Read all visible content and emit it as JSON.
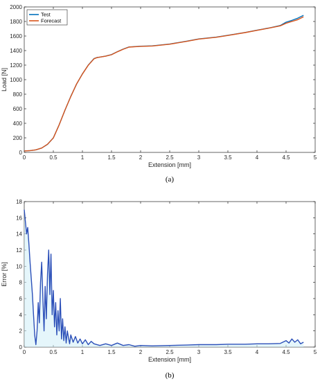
{
  "chart_data": [
    {
      "panel_label": "(a)",
      "type": "line",
      "xlabel": "Extension [mm]",
      "ylabel": "Load [N]",
      "xlim": [
        0,
        5
      ],
      "ylim": [
        0,
        2000
      ],
      "x_ticks": [
        "0",
        "0.5",
        "1",
        "1.5",
        "2",
        "2.5",
        "3",
        "3.5",
        "4",
        "4.5",
        "5"
      ],
      "y_ticks": [
        "0",
        "200",
        "400",
        "600",
        "800",
        "1000",
        "1200",
        "1400",
        "1600",
        "1800",
        "2000"
      ],
      "legend_position": "top-left",
      "series": [
        {
          "name": "Test",
          "color": "#0072bd",
          "x": [
            0,
            0.1,
            0.2,
            0.3,
            0.4,
            0.5,
            0.6,
            0.7,
            0.8,
            0.9,
            1.0,
            1.1,
            1.2,
            1.25,
            1.3,
            1.4,
            1.5,
            1.6,
            1.7,
            1.8,
            2.0,
            2.2,
            2.5,
            2.8,
            3.0,
            3.3,
            3.5,
            3.8,
            4.0,
            4.2,
            4.4,
            4.5,
            4.6,
            4.7,
            4.8
          ],
          "y": [
            20,
            25,
            35,
            60,
            110,
            200,
            380,
            580,
            770,
            940,
            1080,
            1200,
            1290,
            1305,
            1310,
            1325,
            1345,
            1385,
            1420,
            1450,
            1460,
            1465,
            1490,
            1530,
            1560,
            1585,
            1610,
            1650,
            1680,
            1710,
            1745,
            1790,
            1815,
            1845,
            1885
          ]
        },
        {
          "name": "Forecast",
          "color": "#d95319",
          "x": [
            0,
            0.1,
            0.2,
            0.3,
            0.4,
            0.5,
            0.6,
            0.7,
            0.8,
            0.9,
            1.0,
            1.1,
            1.2,
            1.25,
            1.3,
            1.4,
            1.5,
            1.6,
            1.7,
            1.8,
            2.0,
            2.2,
            2.5,
            2.8,
            3.0,
            3.3,
            3.5,
            3.8,
            4.0,
            4.2,
            4.4,
            4.5,
            4.6,
            4.7,
            4.8
          ],
          "y": [
            20,
            25,
            35,
            60,
            112,
            198,
            378,
            582,
            768,
            942,
            1078,
            1198,
            1288,
            1303,
            1310,
            1323,
            1343,
            1383,
            1418,
            1448,
            1458,
            1463,
            1488,
            1528,
            1558,
            1583,
            1608,
            1648,
            1678,
            1708,
            1740,
            1775,
            1800,
            1825,
            1865
          ]
        }
      ]
    },
    {
      "panel_label": "(b)",
      "type": "line",
      "xlabel": "Extension [mm]",
      "ylabel": "Error [%]",
      "xlim": [
        0,
        5
      ],
      "ylim": [
        0,
        18
      ],
      "x_ticks": [
        "0",
        "0.5",
        "1",
        "1.5",
        "2",
        "2.5",
        "3",
        "3.5",
        "4",
        "4.5",
        "5"
      ],
      "y_ticks": [
        "0",
        "2",
        "4",
        "6",
        "8",
        "10",
        "12",
        "14",
        "16",
        "18"
      ],
      "series": [
        {
          "name": "",
          "color": "#2b4fb8",
          "x": [
            0,
            0.02,
            0.04,
            0.06,
            0.08,
            0.1,
            0.12,
            0.14,
            0.16,
            0.18,
            0.2,
            0.22,
            0.24,
            0.26,
            0.28,
            0.3,
            0.32,
            0.34,
            0.36,
            0.38,
            0.4,
            0.42,
            0.44,
            0.46,
            0.48,
            0.5,
            0.52,
            0.54,
            0.56,
            0.58,
            0.6,
            0.62,
            0.64,
            0.66,
            0.68,
            0.7,
            0.72,
            0.74,
            0.76,
            0.78,
            0.8,
            0.84,
            0.88,
            0.92,
            0.96,
            1.0,
            1.05,
            1.1,
            1.15,
            1.2,
            1.3,
            1.4,
            1.5,
            1.6,
            1.7,
            1.8,
            1.9,
            2.0,
            2.2,
            2.5,
            2.8,
            3.0,
            3.3,
            3.5,
            3.8,
            4.0,
            4.2,
            4.4,
            4.5,
            4.55,
            4.6,
            4.65,
            4.7,
            4.75,
            4.8
          ],
          "y": [
            17.0,
            15.5,
            14.0,
            14.8,
            12.8,
            10.5,
            8.5,
            6.5,
            4.0,
            1.5,
            0.3,
            2.0,
            5.5,
            3.0,
            8.0,
            10.5,
            6.0,
            2.0,
            7.5,
            3.5,
            9.0,
            12.0,
            6.5,
            11.5,
            4.0,
            7.0,
            2.5,
            5.5,
            1.5,
            4.5,
            2.0,
            6.0,
            1.0,
            3.5,
            0.8,
            2.5,
            0.5,
            2.0,
            1.2,
            0.4,
            1.5,
            0.6,
            1.3,
            0.5,
            1.0,
            0.4,
            0.9,
            0.3,
            0.7,
            0.4,
            0.2,
            0.4,
            0.2,
            0.5,
            0.2,
            0.3,
            0.1,
            0.2,
            0.15,
            0.2,
            0.25,
            0.3,
            0.3,
            0.35,
            0.35,
            0.4,
            0.4,
            0.45,
            0.8,
            0.5,
            1.0,
            0.6,
            0.9,
            0.4,
            0.6
          ]
        }
      ]
    }
  ]
}
